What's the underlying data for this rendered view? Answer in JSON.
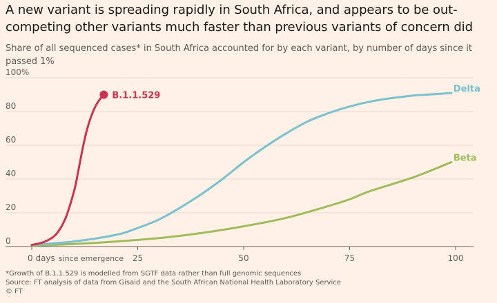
{
  "title": "A new variant is spreading rapidly in South Africa, and appears to be out-competing other variants much faster than previous variants of concern did",
  "subtitle": "Share of all sequenced cases* in South Africa accounted for by each variant, by number of days since it passed 1%",
  "footnotes": {
    "note": "*Growth of B.1.1.529 is modelled from SGTF data rather than full genomic sequences",
    "source": "Source: FT analysis of data from Gisaid and the South African National Health Laboratory Service",
    "credit": "© FT"
  },
  "colors": {
    "background": "#fff1e5",
    "b11529": "#cc3350",
    "delta": "#7ac0ce",
    "beta": "#9fbc5b",
    "gridline": "#e6d9ce",
    "axis": "#66605c"
  },
  "chart_data": {
    "type": "line",
    "xlim": [
      0,
      100
    ],
    "ylim": [
      0,
      100
    ],
    "x_ticks": [
      {
        "value": 0,
        "label": "0 days"
      },
      {
        "value": 25,
        "label": "25"
      },
      {
        "value": 50,
        "label": "50"
      },
      {
        "value": 75,
        "label": "75"
      },
      {
        "value": 100,
        "label": "100"
      }
    ],
    "x_tick_note": "since emergence",
    "y_ticks": [
      {
        "value": 0,
        "label": "0"
      },
      {
        "value": 20,
        "label": "20"
      },
      {
        "value": 40,
        "label": "40"
      },
      {
        "value": 60,
        "label": "60"
      },
      {
        "value": 80,
        "label": "80"
      },
      {
        "value": 100,
        "label": "100%"
      }
    ],
    "grid": true,
    "series": [
      {
        "name": "B.1.1.529",
        "color": "#cc3350",
        "end_marker": true,
        "x": [
          0,
          2,
          4,
          6,
          8,
          10,
          11,
          12,
          13,
          14,
          15,
          16,
          17
        ],
        "y": [
          1,
          2,
          4,
          8,
          17,
          33,
          45,
          58,
          69,
          77,
          83,
          87,
          90
        ]
      },
      {
        "name": "Delta",
        "color": "#7ac0ce",
        "end_marker": false,
        "x": [
          0,
          10,
          20,
          25,
          30,
          35,
          40,
          45,
          50,
          55,
          60,
          65,
          70,
          75,
          80,
          85,
          90,
          95,
          99
        ],
        "y": [
          1,
          3,
          7,
          11,
          16,
          23,
          31,
          40,
          50,
          59,
          67,
          74,
          79,
          83,
          86,
          88,
          89.5,
          90.3,
          91
        ]
      },
      {
        "name": "Beta",
        "color": "#9fbc5b",
        "end_marker": false,
        "x": [
          0,
          10,
          20,
          30,
          40,
          50,
          60,
          70,
          75,
          80,
          90,
          99
        ],
        "y": [
          0.5,
          1.5,
          3,
          5,
          8,
          12,
          17,
          24,
          28,
          33,
          41,
          50
        ]
      }
    ]
  }
}
